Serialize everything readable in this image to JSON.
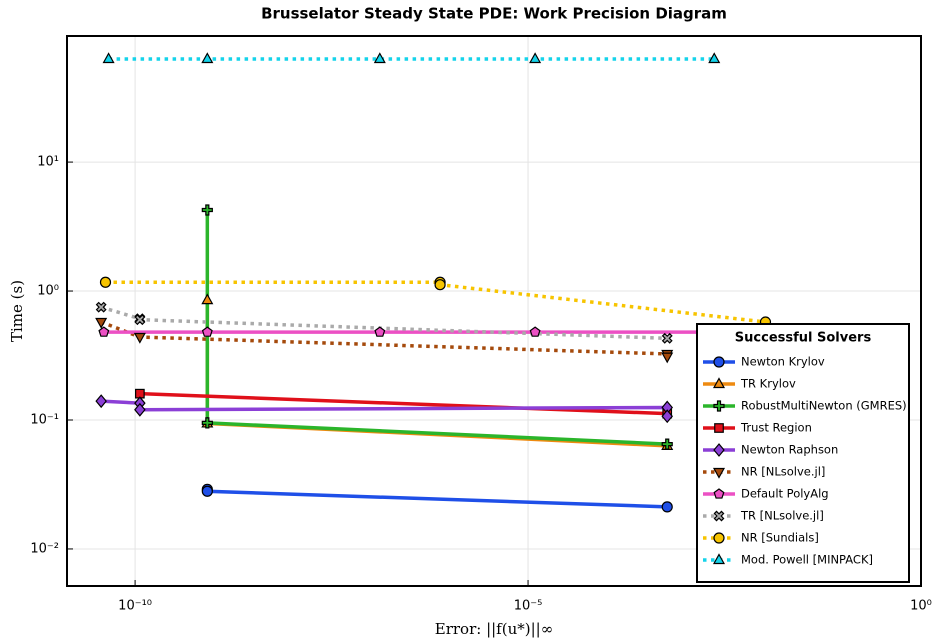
{
  "chart_data": {
    "type": "line",
    "title": "Brusselator Steady State PDE: Work Precision Diagram",
    "x_label": "Error: ||f(u*)||∞",
    "y_label": "Time (s)",
    "log_x": true,
    "log_y": true,
    "grid": true,
    "xlim": [
      1.36e-11,
      1
    ],
    "ylim": [
      0.00516,
      95
    ],
    "xticks": [
      {
        "value": 1e-10,
        "label": "10⁻¹⁰"
      },
      {
        "value": 1e-05,
        "label": "10⁻⁵"
      },
      {
        "value": 1,
        "label": "10⁰"
      }
    ],
    "yticks": [
      {
        "value": 0.01,
        "label": "10⁻²"
      },
      {
        "value": 0.1,
        "label": "10⁻¹"
      },
      {
        "value": 1,
        "label": "10⁰"
      },
      {
        "value": 10,
        "label": "10¹"
      }
    ],
    "legend_title": "Successful Solvers",
    "legend_position": "lower right",
    "series": [
      {
        "name": "Newton Krylov",
        "color": "#1f4fe8",
        "marker": "circle",
        "dash": "solid",
        "x": [
          8.3e-10,
          8.3e-10,
          0.00059
        ],
        "values": [
          0.029,
          0.028,
          0.0212
        ]
      },
      {
        "name": "TR Krylov",
        "color": "#ee8a10",
        "marker": "triangle-up",
        "dash": "solid",
        "x": [
          8.3e-10,
          8.3e-10,
          0.00059
        ],
        "values": [
          0.85,
          0.094,
          0.063
        ]
      },
      {
        "name": "RobustMultiNewton (GMRES)",
        "color": "#2bb52b",
        "marker": "plus",
        "dash": "solid",
        "x": [
          8.3e-10,
          8.3e-10,
          0.00059
        ],
        "values": [
          4.25,
          0.095,
          0.065
        ]
      },
      {
        "name": "Trust Region",
        "color": "#e0101a",
        "marker": "square",
        "dash": "solid",
        "x": [
          1.15e-10,
          0.00059
        ],
        "values": [
          0.16,
          0.112
        ]
      },
      {
        "name": "Newton Raphson",
        "color": "#8b3fd6",
        "marker": "diamond",
        "dash": "solid",
        "x": [
          3.7e-11,
          1.15e-10,
          1.15e-10,
          0.00059,
          0.00059
        ],
        "values": [
          0.14,
          0.135,
          0.12,
          0.125,
          0.107
        ]
      },
      {
        "name": "NR [NLsolve.jl]",
        "color": "#a54a0c",
        "marker": "triangle-down",
        "dash": "dot",
        "x": [
          3.7e-11,
          1.15e-10,
          0.00059,
          0.00059
        ],
        "values": [
          0.575,
          0.44,
          0.325,
          0.31
        ]
      },
      {
        "name": "Default PolyAlg",
        "color": "#ec50c4",
        "marker": "pentagon",
        "dash": "solid",
        "x": [
          4e-11,
          8.3e-10,
          1.3e-07,
          1.23e-05,
          0.00234
        ],
        "values": [
          0.48,
          0.48,
          0.48,
          0.48,
          0.48
        ]
      },
      {
        "name": "TR [NLsolve.jl]",
        "color": "#aaaaaa",
        "marker": "x",
        "dash": "dot",
        "x": [
          3.7e-11,
          1.15e-10,
          1.15e-10,
          0.00059
        ],
        "values": [
          0.75,
          0.61,
          0.6,
          0.43
        ]
      },
      {
        "name": "NR [Sundials]",
        "color": "#f7c400",
        "marker": "circle",
        "dash": "dot",
        "x": [
          4.2e-11,
          7.6e-07,
          7.6e-07,
          0.0105
        ],
        "values": [
          1.17,
          1.17,
          1.12,
          0.575
        ]
      },
      {
        "name": "Mod. Powell [MINPACK]",
        "color": "#15d3ea",
        "marker": "triangle-up",
        "dash": "dot",
        "x": [
          4.6e-11,
          8.3e-10,
          1.3e-07,
          1.23e-05,
          0.00234
        ],
        "values": [
          63,
          63,
          63,
          63,
          63
        ]
      }
    ]
  }
}
